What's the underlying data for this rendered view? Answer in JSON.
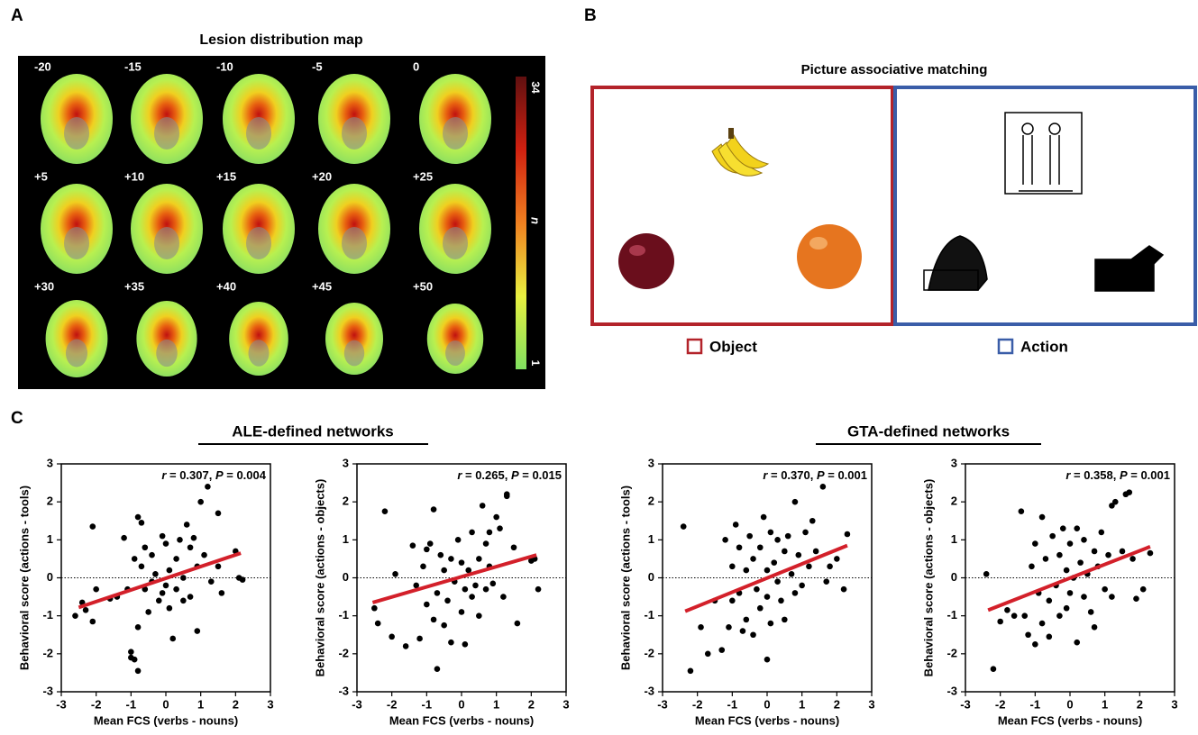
{
  "panel_labels": [
    "A",
    "B",
    "C"
  ],
  "lesion_map": {
    "title": "Lesion distribution map",
    "slices": [
      "-20",
      "-15",
      "-10",
      "-5",
      "0",
      "+5",
      "+10",
      "+15",
      "+20",
      "+25",
      "+30",
      "+35",
      "+40",
      "+45",
      "+50"
    ],
    "colorbar": {
      "max": 34,
      "min": 1,
      "label": "n"
    }
  },
  "picture_matching": {
    "title": "Picture associative matching",
    "legend": [
      {
        "label": "Object",
        "color": "#b3232a"
      },
      {
        "label": "Action",
        "color": "#3a5da8"
      }
    ]
  },
  "networks": [
    {
      "title": "ALE-defined networks"
    },
    {
      "title": "GTA-defined networks"
    }
  ],
  "chart_data": [
    {
      "type": "scatter",
      "annotation": [
        "r",
        " = 0.307, ",
        "P",
        " = 0.004"
      ],
      "x_label": "Mean FCS (verbs - nouns)",
      "y_label": "Behavioral score (actions - tools)",
      "xlim": [
        -3,
        3
      ],
      "ylim": [
        -3,
        3
      ],
      "xticks": [
        -3,
        -2,
        -1,
        0,
        1,
        2,
        3
      ],
      "yticks": [
        -3,
        -2,
        -1,
        0,
        1,
        2,
        3
      ],
      "reference_line": 0,
      "color": "#000000",
      "x": [
        -2.6,
        -2.4,
        -2.3,
        -2.1,
        -2.1,
        -2.0,
        -1.6,
        -1.4,
        -1.2,
        -1.1,
        -1.0,
        -1.0,
        -0.9,
        -0.9,
        -0.8,
        -0.8,
        -0.8,
        -0.7,
        -0.7,
        -0.6,
        -0.6,
        -0.5,
        -0.4,
        -0.4,
        -0.3,
        -0.2,
        -0.1,
        -0.1,
        0,
        0,
        0.1,
        0.1,
        0.2,
        0.3,
        0.3,
        0.4,
        0.5,
        0.5,
        0.6,
        0.7,
        0.7,
        0.8,
        0.9,
        0.9,
        1.0,
        1.1,
        1.2,
        1.3,
        1.5,
        1.5,
        1.6,
        2.0,
        2.1,
        2.2
      ],
      "values": [
        -1.0,
        -0.65,
        -0.85,
        1.35,
        -1.15,
        -0.3,
        -0.55,
        -0.5,
        1.05,
        -0.3,
        -2.1,
        -1.95,
        -2.15,
        0.5,
        1.6,
        -2.45,
        -1.3,
        1.45,
        0.3,
        -0.3,
        0.8,
        -0.9,
        0.6,
        -0.1,
        0.1,
        -0.6,
        1.1,
        -0.4,
        0.9,
        -0.2,
        0.2,
        -0.8,
        -1.6,
        0.5,
        -0.3,
        1.0,
        -0.6,
        0.0,
        1.4,
        0.8,
        -0.5,
        1.05,
        0.3,
        -1.4,
        2.0,
        0.6,
        2.4,
        -0.1,
        1.7,
        0.3,
        -0.4,
        0.7,
        0.0,
        -0.05
      ],
      "fit_line": {
        "color": "#d3202a",
        "x": [
          -2.5,
          2.15
        ],
        "values": [
          -0.78,
          0.65
        ]
      }
    },
    {
      "type": "scatter",
      "annotation": [
        "r",
        " = 0.265, ",
        "P",
        " = 0.015"
      ],
      "x_label": "Mean FCS (verbs - nouns)",
      "y_label": "Behavioral score (actions - objects)",
      "xlim": [
        -3,
        3
      ],
      "ylim": [
        -3,
        3
      ],
      "xticks": [
        -3,
        -2,
        -1,
        0,
        1,
        2,
        3
      ],
      "yticks": [
        -3,
        -2,
        -1,
        0,
        1,
        2,
        3
      ],
      "reference_line": 0,
      "color": "#000000",
      "x": [
        -2.5,
        -2.4,
        -2.2,
        -2.0,
        -1.9,
        -1.6,
        -1.4,
        -1.3,
        -1.2,
        -1.1,
        -1.0,
        -1.0,
        -0.9,
        -0.8,
        -0.8,
        -0.7,
        -0.7,
        -0.6,
        -0.5,
        -0.5,
        -0.4,
        -0.3,
        -0.3,
        -0.2,
        -0.1,
        0,
        0,
        0.1,
        0.1,
        0.2,
        0.3,
        0.3,
        0.4,
        0.5,
        0.5,
        0.6,
        0.7,
        0.7,
        0.8,
        0.8,
        0.9,
        1.0,
        1.1,
        1.2,
        1.3,
        1.3,
        1.5,
        1.6,
        2.0,
        2.1,
        2.2
      ],
      "values": [
        -0.8,
        -1.2,
        1.75,
        -1.55,
        0.1,
        -1.8,
        0.85,
        -0.2,
        -1.6,
        0.3,
        -0.7,
        0.75,
        0.9,
        -1.1,
        1.8,
        -2.4,
        -0.4,
        0.6,
        -1.25,
        0.2,
        -0.6,
        -1.7,
        0.5,
        -0.1,
        1.0,
        -0.9,
        0.4,
        -0.3,
        -1.75,
        0.2,
        -0.5,
        1.2,
        -0.2,
        0.5,
        -1.0,
        1.9,
        0.9,
        -0.3,
        1.2,
        0.3,
        -0.15,
        1.6,
        1.3,
        -0.5,
        2.15,
        2.2,
        0.8,
        -1.2,
        0.45,
        0.5,
        -0.3
      ],
      "fit_line": {
        "color": "#d3202a",
        "x": [
          -2.55,
          2.15
        ],
        "values": [
          -0.65,
          0.6
        ]
      }
    },
    {
      "type": "scatter",
      "annotation": [
        "r",
        " = 0.370, ",
        "P",
        " = 0.001"
      ],
      "x_label": "Mean FCS (verbs - nouns)",
      "y_label": "Behavioral score (actions - tools)",
      "xlim": [
        -3,
        3
      ],
      "ylim": [
        -3,
        3
      ],
      "xticks": [
        -3,
        -2,
        -1,
        0,
        1,
        2,
        3
      ],
      "yticks": [
        -3,
        -2,
        -1,
        0,
        1,
        2,
        3
      ],
      "reference_line": 0,
      "color": "#000000",
      "x": [
        -2.4,
        -2.2,
        -1.9,
        -1.7,
        -1.5,
        -1.3,
        -1.2,
        -1.1,
        -1.0,
        -1.0,
        -0.9,
        -0.8,
        -0.8,
        -0.7,
        -0.6,
        -0.6,
        -0.5,
        -0.4,
        -0.4,
        -0.3,
        -0.2,
        -0.2,
        -0.1,
        0,
        0,
        0.1,
        0.1,
        0.2,
        0.3,
        0.3,
        0.4,
        0.5,
        0.5,
        0.6,
        0.7,
        0.8,
        0.8,
        0.9,
        1.0,
        1.1,
        1.2,
        1.3,
        1.4,
        1.6,
        1.7,
        1.8,
        2.0,
        2.2,
        2.3,
        0.0
      ],
      "values": [
        1.35,
        -2.45,
        -1.3,
        -2.0,
        -0.6,
        -1.9,
        1.0,
        -1.3,
        0.3,
        -0.6,
        1.4,
        -0.4,
        0.8,
        -1.4,
        0.2,
        -1.1,
        1.1,
        -1.5,
        0.5,
        -0.3,
        0.8,
        -0.8,
        1.6,
        0.2,
        -0.5,
        1.2,
        -1.2,
        0.4,
        -0.1,
        1.0,
        -0.6,
        0.7,
        -1.1,
        1.1,
        0.1,
        2.0,
        -0.4,
        0.6,
        -0.2,
        1.2,
        0.3,
        1.5,
        0.7,
        2.4,
        -0.1,
        0.3,
        0.5,
        -0.3,
        1.15,
        -2.15
      ],
      "fit_line": {
        "color": "#d3202a",
        "x": [
          -2.35,
          2.3
        ],
        "values": [
          -0.88,
          0.85
        ]
      }
    },
    {
      "type": "scatter",
      "annotation": [
        "r",
        " = 0.358, ",
        "P",
        " = 0.001"
      ],
      "x_label": "Mean FCS (verbs - nouns)",
      "y_label": "Behavioral score (actions - objects)",
      "xlim": [
        -3,
        3
      ],
      "ylim": [
        -3,
        3
      ],
      "xticks": [
        -3,
        -2,
        -1,
        0,
        1,
        2,
        3
      ],
      "yticks": [
        -3,
        -2,
        -1,
        0,
        1,
        2,
        3
      ],
      "reference_line": 0,
      "color": "#000000",
      "x": [
        -2.4,
        -2.2,
        -2.0,
        -1.8,
        -1.6,
        -1.4,
        -1.3,
        -1.2,
        -1.1,
        -1.0,
        -1.0,
        -0.9,
        -0.8,
        -0.8,
        -0.7,
        -0.6,
        -0.6,
        -0.5,
        -0.4,
        -0.3,
        -0.3,
        -0.2,
        -0.1,
        -0.1,
        0,
        0,
        0.1,
        0.2,
        0.2,
        0.3,
        0.4,
        0.4,
        0.5,
        0.6,
        0.7,
        0.7,
        0.8,
        0.9,
        1.0,
        1.1,
        1.2,
        1.2,
        1.3,
        1.5,
        1.6,
        1.7,
        1.8,
        1.9,
        2.1,
        2.3
      ],
      "values": [
        0.1,
        -2.4,
        -1.15,
        -0.85,
        -1.0,
        1.75,
        -1.0,
        -1.5,
        0.3,
        -1.75,
        0.9,
        -0.4,
        1.6,
        -1.2,
        0.5,
        -0.6,
        -1.55,
        1.1,
        -0.2,
        0.6,
        -1.0,
        1.3,
        0.2,
        -0.8,
        0.9,
        -0.4,
        0.0,
        1.3,
        -1.7,
        0.4,
        -0.5,
        1.0,
        0.1,
        -0.9,
        0.7,
        -1.3,
        0.3,
        1.2,
        -0.3,
        0.6,
        1.9,
        -0.5,
        2.0,
        0.7,
        2.2,
        2.25,
        0.5,
        -0.55,
        -0.3,
        0.65
      ],
      "fit_line": {
        "color": "#d3202a",
        "x": [
          -2.35,
          2.3
        ],
        "values": [
          -0.85,
          0.82
        ]
      }
    }
  ]
}
